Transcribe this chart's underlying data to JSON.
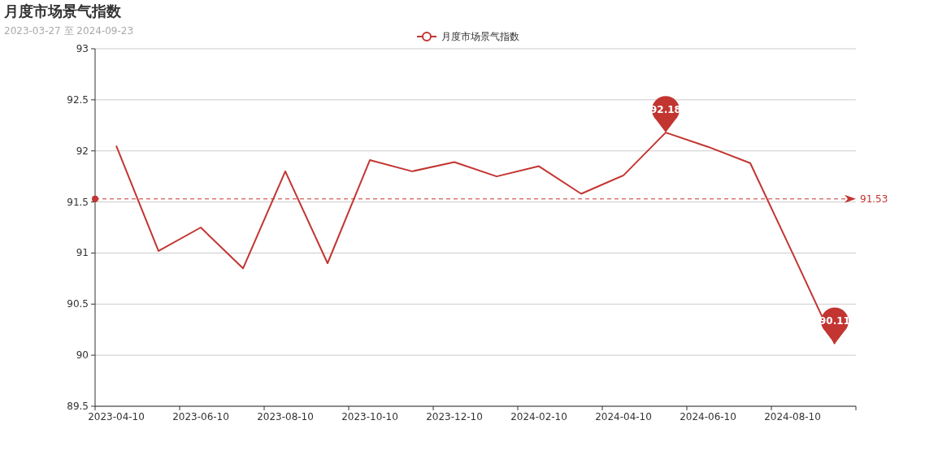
{
  "chart_data": {
    "type": "line",
    "title": "月度市场景气指数",
    "subtitle": "2023-03-27 至 2024-09-23",
    "categories": [
      "2023-04-10",
      null,
      "2023-06-10",
      null,
      "2023-08-10",
      null,
      "2023-10-10",
      null,
      "2023-12-10",
      null,
      "2024-02-10",
      null,
      "2024-04-10",
      null,
      "2024-06-10",
      null,
      "2024-08-10",
      null
    ],
    "series": [
      {
        "name": "月度市场景气指数",
        "color": "#c23531",
        "values": [
          92.05,
          91.02,
          91.25,
          90.85,
          91.8,
          90.9,
          91.91,
          91.8,
          91.89,
          91.75,
          91.85,
          91.58,
          91.76,
          92.18,
          92.04,
          91.88,
          91.0,
          90.11
        ]
      }
    ],
    "ylim": [
      89.5,
      93
    ],
    "yticks": [
      89.5,
      90,
      90.5,
      91,
      91.5,
      92,
      92.5,
      93
    ],
    "grid": "y",
    "legend": "top",
    "line_style": "solid",
    "ref_lines": [
      {
        "axis": "y",
        "value": 91.53,
        "label": "91.53",
        "color": "#c23531",
        "line_style": "dashed"
      }
    ],
    "annotations": [
      {
        "text": "92.18",
        "y": 92.18
      },
      {
        "text": "90.11",
        "y": 90.11
      }
    ]
  }
}
